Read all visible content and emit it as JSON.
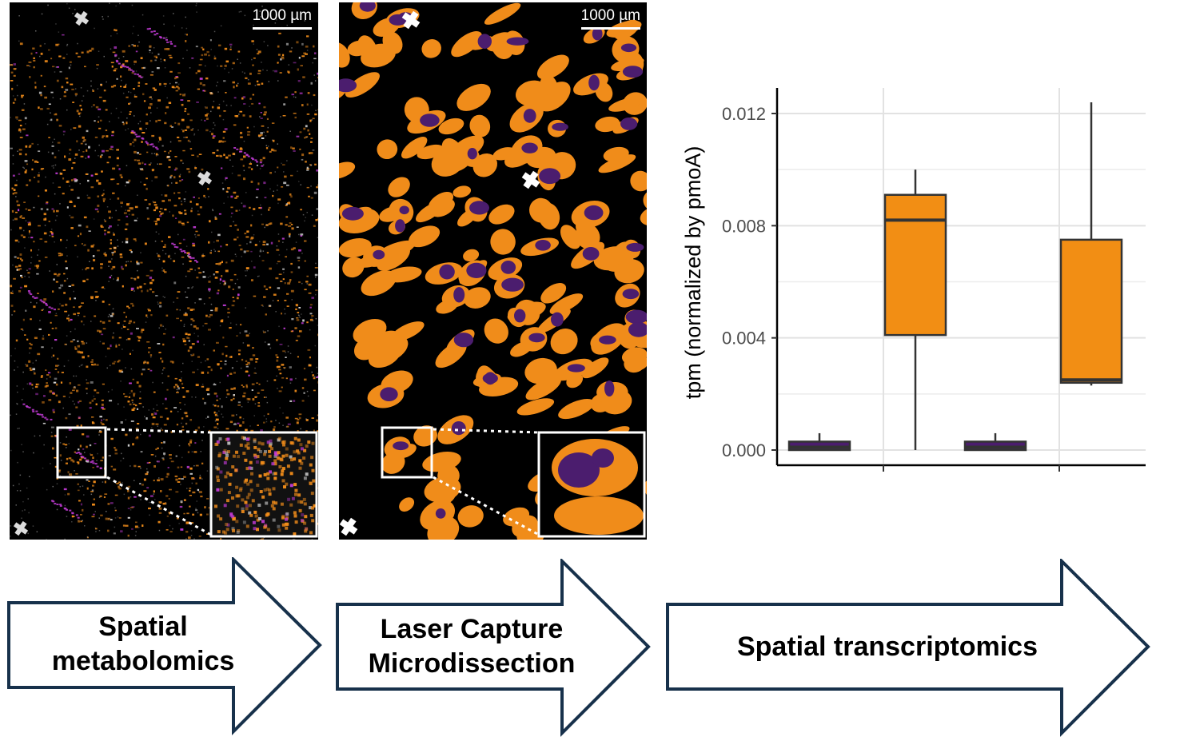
{
  "panels": {
    "metabolomics": {
      "scale_bar": "1000 µm"
    },
    "lcm": {
      "scale_bar": "1000 µm"
    }
  },
  "colors": {
    "orange": "#f08c1a",
    "purple": "#4b1d6e",
    "magenta": "#c23bd6",
    "box_orange": "#f28e14",
    "box_purple": "#4b1d6e",
    "arrow_stroke": "#17314b"
  },
  "arrows": [
    {
      "label_line1": "Spatial",
      "label_line2": "metabolomics"
    },
    {
      "label_line1": "Laser Capture",
      "label_line2": "Microdissection"
    },
    {
      "label_line1": "Spatial transcriptomics",
      "label_line2": ""
    }
  ],
  "chart_data": {
    "type": "box",
    "ylabel": "tpm (normalized by pmoA)",
    "ylim": [
      0,
      0.0126
    ],
    "yticks": [
      0.0,
      0.004,
      0.008,
      0.012
    ],
    "ytick_labels": [
      "0.000",
      "0.004",
      "0.008",
      "0.012"
    ],
    "grid": true,
    "groups": [
      {
        "boxes": [
          {
            "color": "purple",
            "min": 0,
            "q1": 0.0,
            "median": 0.0001,
            "q3": 0.0003,
            "max": 0.0006
          },
          {
            "color": "orange",
            "min": 0.0,
            "q1": 0.0041,
            "median": 0.0082,
            "q3": 0.0091,
            "max": 0.01
          }
        ]
      },
      {
        "boxes": [
          {
            "color": "purple",
            "min": 0,
            "q1": 0.0,
            "median": 0.0001,
            "q3": 0.0003,
            "max": 0.0006
          },
          {
            "color": "orange",
            "min": 0.0023,
            "q1": 0.0024,
            "median": 0.0025,
            "q3": 0.0075,
            "max": 0.0124
          }
        ]
      }
    ]
  }
}
